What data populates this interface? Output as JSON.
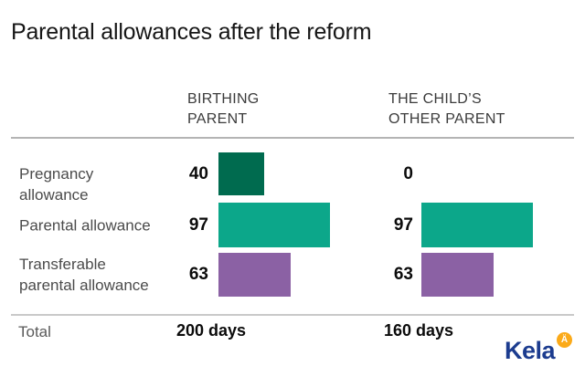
{
  "title": "Parental allowances after the reform",
  "columns": {
    "left": {
      "lines": [
        "BIRTHING",
        "PARENT"
      ]
    },
    "right": {
      "lines": [
        "THE CHILD’S",
        "OTHER PARENT"
      ]
    }
  },
  "rows": [
    {
      "label_lines": [
        "Pregnancy",
        "allowance"
      ],
      "values": {
        "birthing_parent": 40,
        "other_parent": 0
      },
      "color": "#006B4F"
    },
    {
      "label_lines": [
        "Parental allowance"
      ],
      "values": {
        "birthing_parent": 97,
        "other_parent": 97
      },
      "color": "#0CA78A"
    },
    {
      "label_lines": [
        "Transferable",
        "parental allowance"
      ],
      "values": {
        "birthing_parent": 63,
        "other_parent": 63
      },
      "color": "#8B61A4"
    }
  ],
  "total": {
    "label": "Total",
    "left_value": "200 days",
    "right_value": "160 days"
  },
  "logo": {
    "wordmark": "Kela",
    "symbol_glyph": "Ä",
    "blue": "#1C3C8F",
    "yellow": "#FBAA19"
  },
  "chart_data": {
    "type": "bar",
    "orientation": "horizontal",
    "title": "Parental allowances after the reform",
    "categories": [
      "Pregnancy allowance",
      "Parental allowance",
      "Transferable parental allowance"
    ],
    "series": [
      {
        "name": "Birthing parent",
        "values": [
          40,
          97,
          63
        ],
        "total_label": "200 days"
      },
      {
        "name": "The child's other parent",
        "values": [
          0,
          97,
          63
        ],
        "total_label": "160 days"
      }
    ],
    "unit": "days",
    "bar_colors": [
      "#006B4F",
      "#0CA78A",
      "#8B61A4"
    ],
    "value_labels_shown": true,
    "axes_shown": false,
    "legend_position": "column-headers"
  }
}
